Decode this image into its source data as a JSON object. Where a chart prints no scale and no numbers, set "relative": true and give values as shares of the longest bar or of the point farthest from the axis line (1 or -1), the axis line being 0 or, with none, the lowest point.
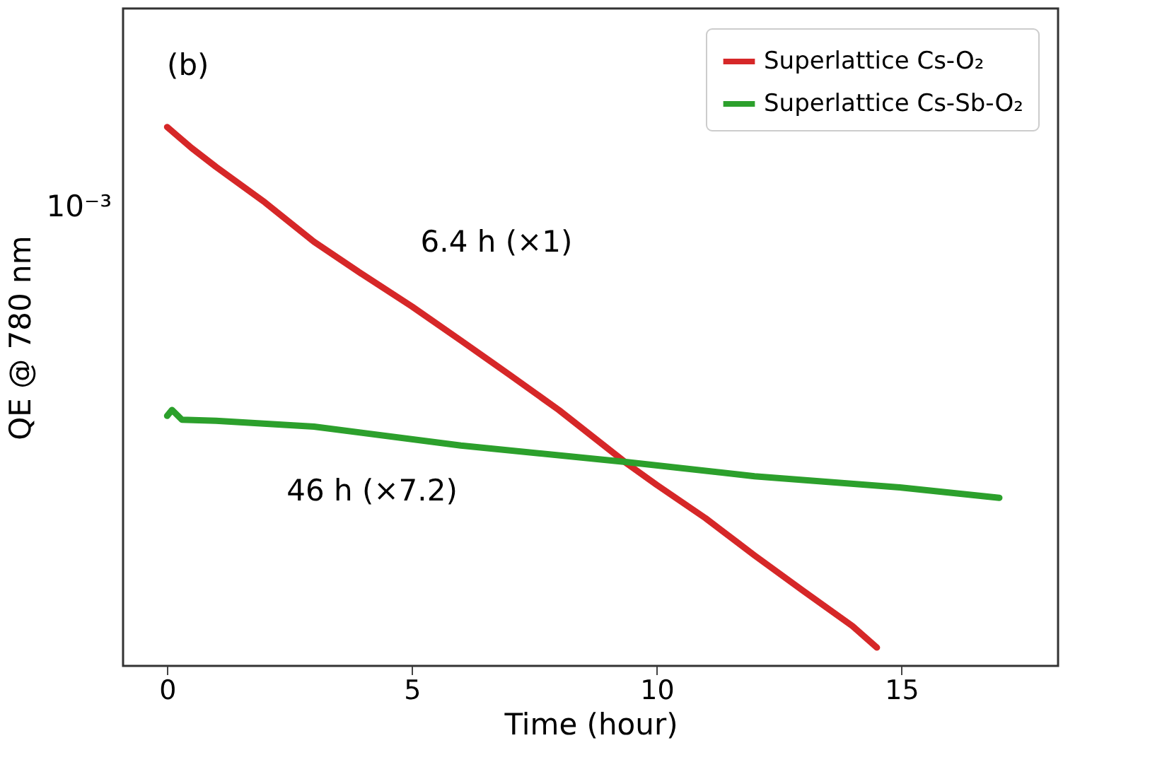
{
  "chart_data": {
    "type": "line",
    "relative": true,
    "xlabel": "Time (hour)",
    "ylabel": "QE @ 780 nm",
    "grid": false,
    "legend": "top right",
    "marker": "none",
    "line_style": "solid",
    "xlim": [
      -0.9,
      18.2
    ],
    "xticks": [
      0,
      5,
      10,
      15
    ],
    "annotations": [
      "(b)",
      "10⁻³",
      "6.4 h (×1)",
      "46 h (×7.2)"
    ],
    "series": [
      {
        "name": "Superlattice Cs-O₂",
        "color": "#d62728",
        "x": [
          0,
          0.5,
          1,
          2,
          3,
          4,
          5,
          6,
          7,
          8,
          9.4,
          10,
          11,
          12,
          13,
          14,
          14.5
        ],
        "values": [
          1,
          0.961,
          0.926,
          0.86,
          0.787,
          0.726,
          0.667,
          0.604,
          0.54,
          0.475,
          0.375,
          0.336,
          0.274,
          0.205,
          0.139,
          0.074,
          0.034
        ]
      },
      {
        "name": "Superlattice Cs-Sb-O₂",
        "color": "#2ca02c",
        "x": [
          0,
          0.1,
          0.3,
          1,
          3,
          6,
          9.4,
          12,
          15,
          17
        ],
        "values": [
          0.464,
          0.475,
          0.457,
          0.455,
          0.444,
          0.409,
          0.378,
          0.352,
          0.331,
          0.312
        ]
      }
    ]
  }
}
